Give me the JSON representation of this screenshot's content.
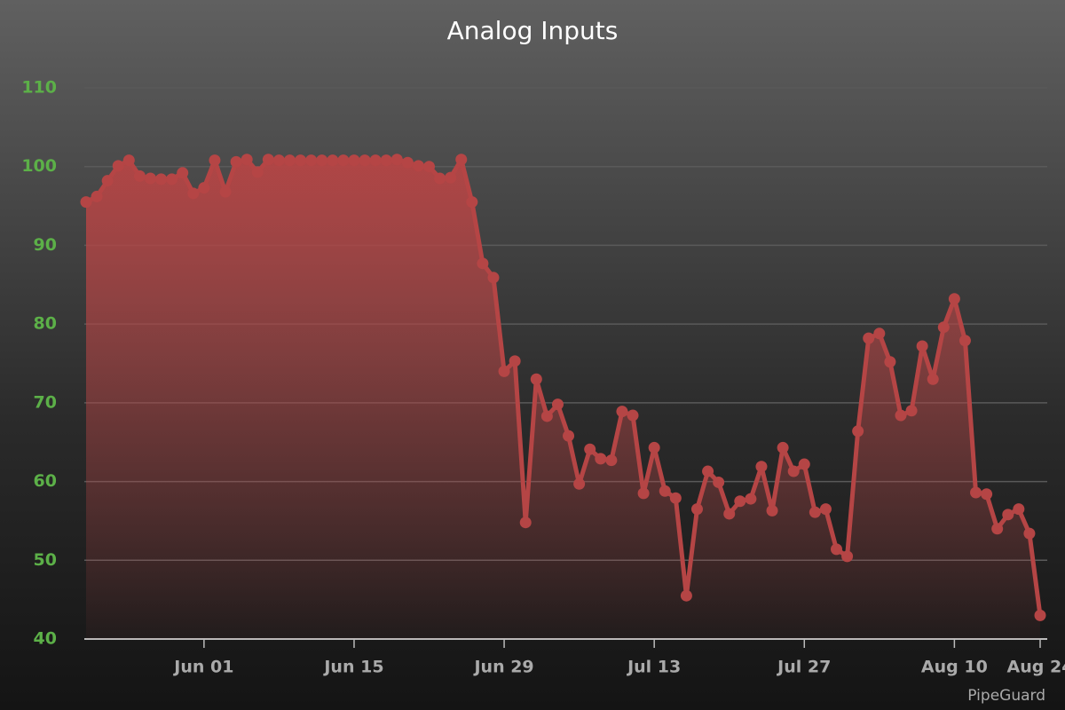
{
  "chart_data": {
    "type": "area",
    "title": "Analog Inputs",
    "credits": "PipeGuard",
    "categories": [
      null,
      null,
      null,
      null,
      null,
      null,
      null,
      null,
      null,
      null,
      null,
      "Jun 01",
      null,
      null,
      null,
      null,
      null,
      null,
      null,
      null,
      null,
      null,
      null,
      null,
      null,
      "Jun 15",
      null,
      null,
      null,
      null,
      null,
      null,
      null,
      null,
      null,
      null,
      null,
      null,
      null,
      "Jun 29",
      null,
      null,
      null,
      null,
      null,
      null,
      null,
      null,
      null,
      null,
      null,
      null,
      null,
      "Jul 13",
      null,
      null,
      null,
      null,
      null,
      null,
      null,
      null,
      null,
      null,
      null,
      null,
      null,
      "Jul 27",
      null,
      null,
      null,
      null,
      null,
      null,
      null,
      null,
      null,
      null,
      null,
      null,
      null,
      "Aug 10",
      null,
      null,
      null,
      null,
      null,
      null,
      null,
      "Aug 24"
    ],
    "values": [
      95.5,
      96.2,
      98.2,
      100.1,
      100.8,
      98.8,
      98.5,
      98.4,
      98.4,
      99.2,
      96.6,
      97.3,
      100.8,
      96.8,
      100.6,
      100.9,
      99.3,
      100.9,
      100.8,
      100.8,
      100.8,
      100.8,
      100.8,
      100.8,
      100.8,
      100.8,
      100.8,
      100.8,
      100.8,
      100.9,
      100.5,
      100.1,
      100.0,
      98.5,
      98.6,
      100.9,
      95.5,
      87.7,
      85.9,
      74.0,
      75.3,
      54.8,
      73.0,
      68.3,
      69.8,
      65.8,
      59.7,
      64.1,
      62.9,
      62.7,
      68.9,
      68.4,
      58.5,
      64.3,
      58.8,
      57.9,
      45.5,
      56.5,
      61.3,
      59.9,
      55.9,
      57.5,
      57.8,
      61.9,
      56.3,
      64.3,
      61.3,
      62.2,
      56.1,
      56.5,
      51.4,
      50.5,
      66.4,
      78.2,
      78.8,
      75.2,
      68.4,
      69.0,
      77.2,
      73.0,
      79.6,
      83.2,
      77.9,
      58.6,
      58.4,
      54.0,
      55.8,
      56.5,
      53.4,
      43.0
    ],
    "color": "#b54545",
    "ylim": [
      40,
      110
    ],
    "yticks": [
      40,
      50,
      60,
      70,
      80,
      90,
      100,
      110
    ],
    "grid": true
  }
}
